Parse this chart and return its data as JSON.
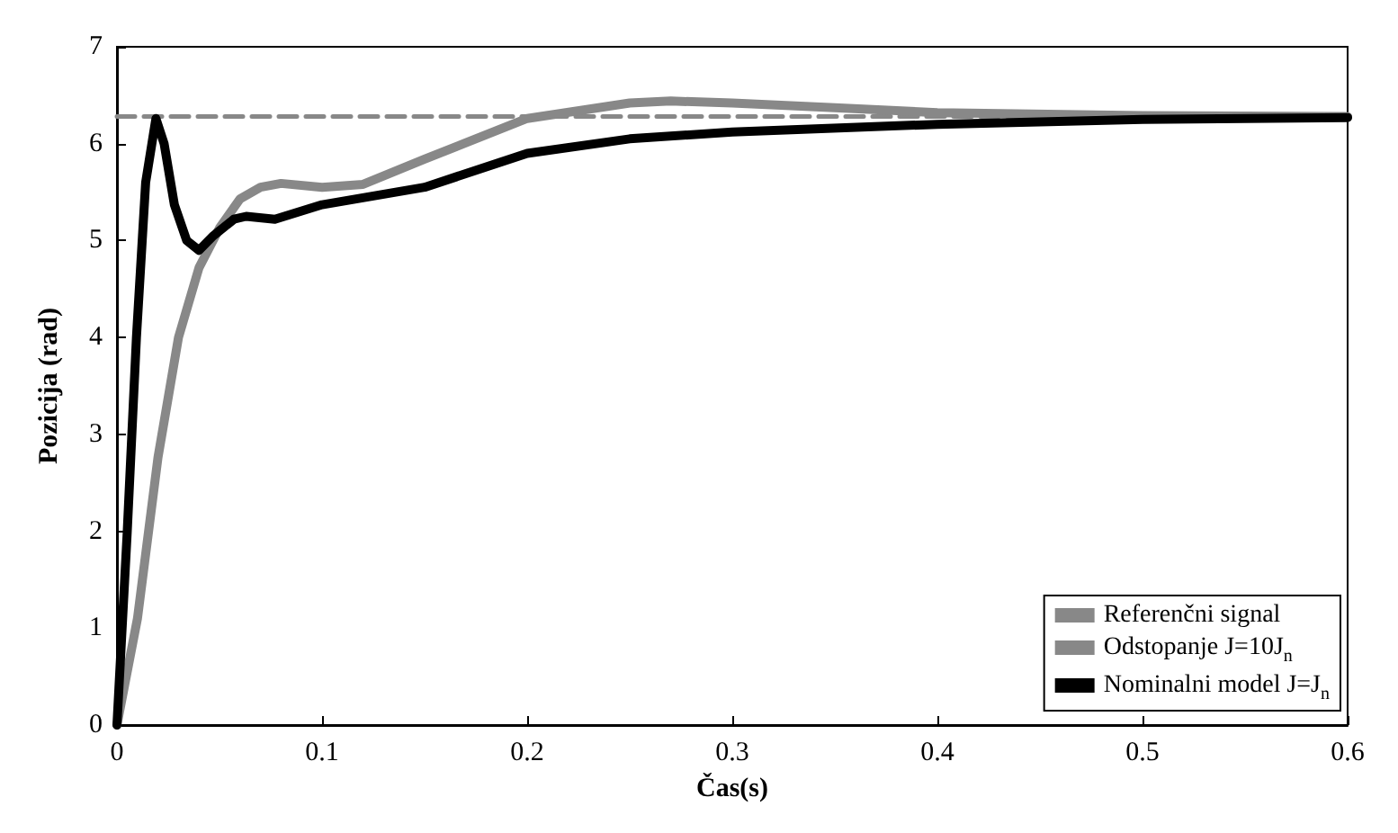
{
  "chart_data": {
    "type": "line",
    "xlabel": "Čas(s)",
    "ylabel": "Pozicija (rad)",
    "xlim": [
      0,
      0.6
    ],
    "xticks": [
      0,
      0.1,
      0.2,
      0.3,
      0.4,
      0.5,
      0.6
    ],
    "ylim": [
      0,
      7
    ],
    "yticks": [
      0,
      1,
      2,
      3,
      4,
      5,
      6,
      7
    ],
    "grid": false,
    "legend": "bottom right",
    "marker": "none",
    "series": [
      {
        "name": "Referenčni signal",
        "color": "#888888",
        "line_style": "dashed",
        "x": [
          0,
          0.6
        ],
        "values": [
          6.28,
          6.28
        ]
      },
      {
        "name": "Odstopanje J=10J$_{n}$",
        "color": "#888888",
        "line_style": "solid",
        "x": [
          0,
          0.01,
          0.02,
          0.03,
          0.04,
          0.05,
          0.06,
          0.07,
          0.08,
          0.1,
          0.12,
          0.15,
          0.2,
          0.25,
          0.27,
          0.3,
          0.35,
          0.4,
          0.5,
          0.6
        ],
        "values": [
          0,
          1.1,
          2.76,
          4.0,
          4.72,
          5.13,
          5.43,
          5.55,
          5.59,
          5.55,
          5.58,
          5.84,
          6.26,
          6.42,
          6.44,
          6.42,
          6.37,
          6.32,
          6.29,
          6.28
        ]
      },
      {
        "name": "Nominalni model J=J$_{n}$",
        "color": "#000000",
        "line_style": "solid",
        "x": [
          0,
          0.005,
          0.0095,
          0.014,
          0.019,
          0.023,
          0.028,
          0.034,
          0.04,
          0.047,
          0.057,
          0.063,
          0.077,
          0.1,
          0.15,
          0.2,
          0.25,
          0.3,
          0.4,
          0.5,
          0.6
        ],
        "values": [
          0,
          1.99,
          4.0,
          5.6,
          6.26,
          6.0,
          5.37,
          5.0,
          4.9,
          5.05,
          5.22,
          5.25,
          5.22,
          5.37,
          5.55,
          5.9,
          6.05,
          6.12,
          6.2,
          6.25,
          6.27
        ]
      }
    ]
  }
}
